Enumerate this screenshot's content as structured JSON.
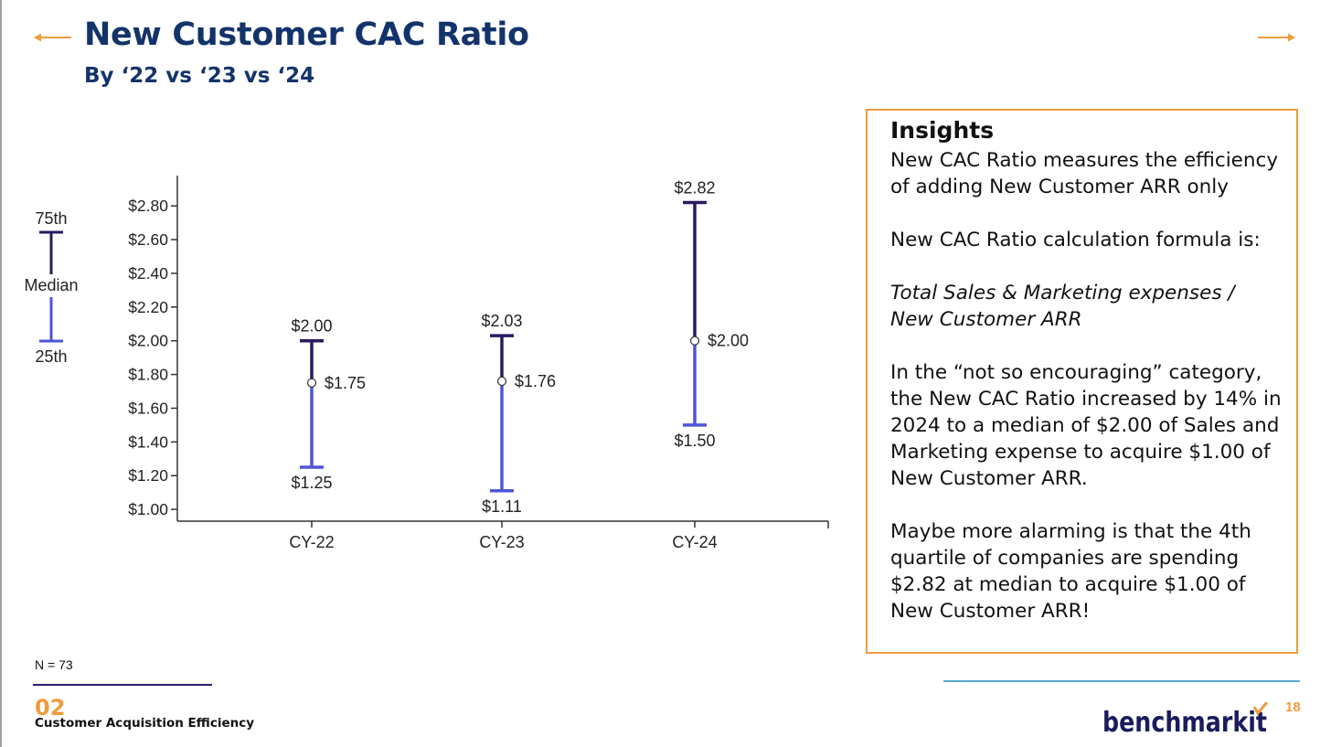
{
  "header": {
    "title": "New Customer CAC Ratio",
    "subtitle": "By ‘22 vs ‘23 vs ‘24"
  },
  "legend": {
    "top_label": "75th",
    "mid_label": "Median",
    "bottom_label": "25th"
  },
  "chart_data": {
    "type": "range",
    "categories": [
      "CY-22",
      "CY-23",
      "CY-24"
    ],
    "series": [
      {
        "name": "75th",
        "values": [
          2.0,
          2.03,
          2.82
        ],
        "labels": [
          "$2.00",
          "$2.03",
          "$2.82"
        ]
      },
      {
        "name": "Median",
        "values": [
          1.75,
          1.76,
          2.0
        ],
        "labels": [
          "$1.75",
          "$1.76",
          "$2.00"
        ]
      },
      {
        "name": "25th",
        "values": [
          1.25,
          1.11,
          1.5
        ],
        "labels": [
          "$1.25",
          "$1.11",
          "$1.50"
        ]
      }
    ],
    "y_ticks": [
      {
        "value": 1.0,
        "label": "$1.00"
      },
      {
        "value": 1.2,
        "label": "$1.20"
      },
      {
        "value": 1.4,
        "label": "$1.40"
      },
      {
        "value": 1.6,
        "label": "$1.60"
      },
      {
        "value": 1.8,
        "label": "$1.80"
      },
      {
        "value": 2.0,
        "label": "$2.00"
      },
      {
        "value": 2.2,
        "label": "$2.20"
      },
      {
        "value": 2.4,
        "label": "$2.40"
      },
      {
        "value": 2.6,
        "label": "$2.60"
      },
      {
        "value": 2.8,
        "label": "$2.80"
      }
    ],
    "ylim": [
      0.93,
      2.98
    ],
    "grid": false,
    "colors": {
      "upper": "#2a1a5e",
      "lower": "#4f55d6"
    }
  },
  "insights": {
    "title": "Insights",
    "p1": "New CAC Ratio measures the efficiency of adding New Customer ARR only",
    "p2": "New CAC Ratio calculation formula is:",
    "formula_line1": "Total Sales & Marketing expenses /",
    "formula_line2": "New Customer ARR",
    "p3": "In the “not so encouraging” category, the New CAC Ratio increased by 14% in 2024 to a median of $2.00 of Sales and Marketing expense to acquire $1.00 of New Customer ARR.",
    "p4": "Maybe more alarming is that the 4th quartile of companies are spending $2.82 at median to acquire $1.00 of New Customer ARR!"
  },
  "footer": {
    "n_label": "N = 73",
    "section_number": "02",
    "section_name": "Customer Acquisition Efficiency",
    "logo_text": "benchmarkit",
    "page_number": "18"
  },
  "colors": {
    "accent": "#f19b3c",
    "title": "#13336b"
  }
}
